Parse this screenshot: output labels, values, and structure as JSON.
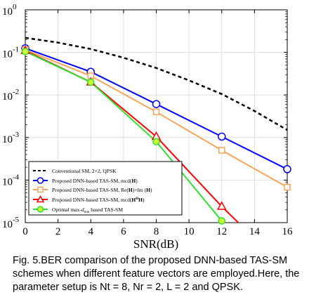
{
  "chart_data": {
    "type": "line",
    "xlabel": "SNR(dB)",
    "ylabel": "",
    "y_scale": "log",
    "xlim": [
      0,
      16
    ],
    "ylim": [
      1e-05,
      1
    ],
    "x_ticks": [
      "0",
      "2",
      "4",
      "6",
      "8",
      "10",
      "12",
      "14",
      "16"
    ],
    "y_ticks": [
      {
        "value": 1,
        "base": "10",
        "exp": "0"
      },
      {
        "value": 0.1,
        "base": "10",
        "exp": "-1"
      },
      {
        "value": 0.01,
        "base": "10",
        "exp": "-2"
      },
      {
        "value": 0.001,
        "base": "10",
        "exp": "-3"
      },
      {
        "value": 0.0001,
        "base": "10",
        "exp": "-4"
      },
      {
        "value": 1e-05,
        "base": "10",
        "exp": "-5"
      }
    ],
    "grid": true,
    "legend_position": "bottom-left",
    "series": [
      {
        "name": "Conventional SM, 2×2, QPSK",
        "color": "#000000",
        "line": "dashed",
        "marker": "none",
        "x": [
          0,
          2,
          4,
          6,
          8,
          10,
          12,
          14,
          16
        ],
        "y": [
          0.22,
          0.17,
          0.12,
          0.075,
          0.043,
          0.022,
          0.0105,
          0.0042,
          0.0015
        ]
      },
      {
        "name": "Proposed DNN-based TAS-SM, mcd(H)",
        "color": "#0000ff",
        "line": "solid",
        "marker": "circle",
        "x": [
          0,
          4,
          8,
          12,
          16
        ],
        "y": [
          0.125,
          0.035,
          0.0061,
          0.00105,
          0.00018
        ]
      },
      {
        "name": "Proposed DNN-based TAS-SM, Re(H)+Im(H)",
        "color": "#f5a65b",
        "line": "solid",
        "marker": "square",
        "x": [
          0,
          4,
          8,
          12,
          16
        ],
        "y": [
          0.115,
          0.028,
          0.004,
          0.0005,
          6.8e-05
        ]
      },
      {
        "name": "Proposed DNN-based TAS-SM, mcd(HᴴH)",
        "color": "#ff0000",
        "line": "solid",
        "marker": "triangle",
        "x": [
          0,
          4,
          8,
          12,
          13.2
        ],
        "y": [
          0.11,
          0.02,
          0.00105,
          2.4e-05,
          8.5e-06
        ],
        "marker_x": [
          0,
          4,
          8,
          12
        ]
      },
      {
        "name": "Optimal max-dmin based TAS-SM",
        "color": "#33dd33",
        "line": "solid",
        "marker": "filled-circle",
        "x": [
          0,
          4,
          8,
          12,
          12.6
        ],
        "y": [
          0.105,
          0.02,
          0.0008,
          1.1e-05,
          7.2e-06
        ],
        "marker_x": [
          0,
          4,
          8,
          12
        ]
      }
    ]
  },
  "legend_labels": {
    "s0": "Conventional SM, 2×2, QPSK",
    "s1_pre": "Proposed DNN-based TAS-SM, mcd(",
    "s1_bold": "H",
    "s1_post": ")",
    "s2_pre": "Proposed DNN-based TAS-SM, Re(",
    "s2_bold1": "H",
    "s2_mid": ")+Im (",
    "s2_bold2": "H",
    "s2_post": ")",
    "s3_pre": "Proposed DNN-based TAS-SM, mcd(",
    "s3_bold1": "H",
    "s3_sup": "H",
    "s3_bold2": "H",
    "s3_post": ")",
    "s4_pre": "Optimal max-",
    "s4_d": "d",
    "s4_sub": "min",
    "s4_post": " based TAS-SM"
  },
  "caption": {
    "line1": "Fig. 5.BER comparison of the proposed DNN-based TAS-SM",
    "line2": "schemes when different feature vectors are employed.Here, the",
    "line3": "parameter setup is Nt = 8, Nr = 2, L = 2 and QPSK."
  }
}
